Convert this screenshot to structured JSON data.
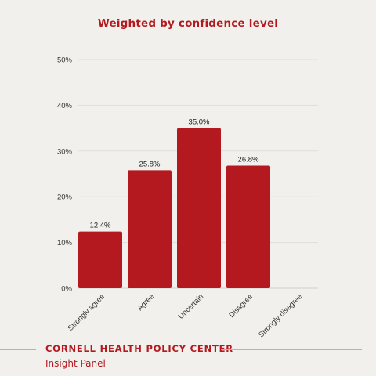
{
  "chart_data": {
    "type": "bar",
    "title": "Weighted by confidence level",
    "categories": [
      "Strongly agree",
      "Agree",
      "Uncertain",
      "Disagree",
      "Strongly disagree"
    ],
    "values": [
      12.4,
      25.8,
      35.0,
      26.8,
      null
    ],
    "data_labels": [
      "12.4%",
      "25.8%",
      "35.0%",
      "26.8%",
      ""
    ],
    "y_ticks": [
      "0%",
      "10%",
      "20%",
      "30%",
      "40%",
      "50%"
    ],
    "ylim": [
      0,
      50
    ],
    "grid": true,
    "bar_color": "#b3191e"
  },
  "footer": {
    "org": "CORNELL HEALTH POLICY CENTER",
    "subtitle": "Insight Panel"
  },
  "colors": {
    "accent": "#b3191e",
    "rule": "#eaa85a",
    "background": "#f1f0ed"
  }
}
